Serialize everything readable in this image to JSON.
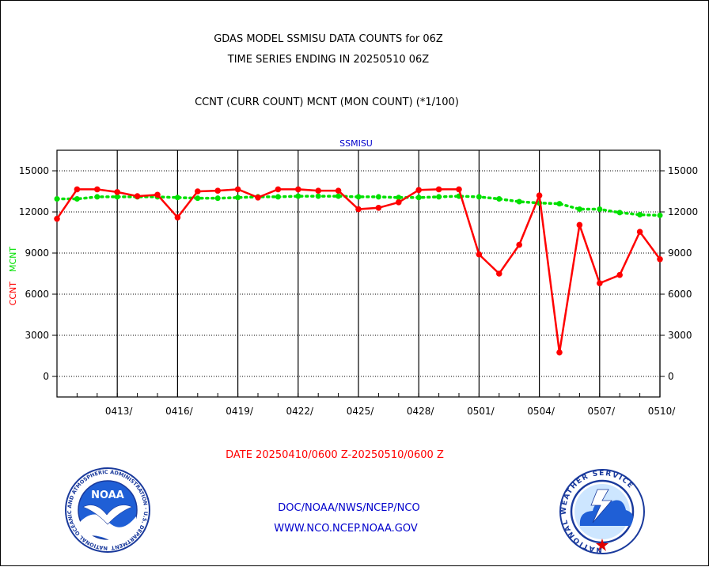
{
  "header": {
    "title_line1": "GDAS MODEL SSMISU DATA COUNTS for 06Z",
    "title_line2": "TIME SERIES ENDING IN 20250510 06Z",
    "subtitle": "CCNT (CURR COUNT) MCNT (MON COUNT) (*1/100)"
  },
  "chart_data": {
    "type": "line",
    "title": "SSMISU",
    "ylabel_ccnt": "CCNT",
    "ylabel_mcnt": "MCNT",
    "xlabel": "DATE 20250410/0600 Z-20250510/0600 Z",
    "ylim": [
      -1500,
      16500
    ],
    "yticks": [
      0,
      3000,
      6000,
      9000,
      12000,
      15000
    ],
    "ytick_labels": [
      "0",
      "3000",
      "6000",
      "9000",
      "12000",
      "15000"
    ],
    "xlim": [
      0,
      30
    ],
    "xtick_major_days": [
      3,
      6,
      9,
      12,
      15,
      18,
      21,
      24,
      27,
      30
    ],
    "xtick_labels": [
      "0413/",
      "0416/",
      "0419/",
      "0422/",
      "0425/",
      "0428/",
      "0501/",
      "0504/",
      "0507/",
      "0510/"
    ],
    "grid": true,
    "series": [
      {
        "name": "CCNT",
        "color": "#ff0000",
        "values": [
          11500,
          13650,
          13650,
          13450,
          13150,
          13250,
          11600,
          13500,
          13550,
          13650,
          13050,
          13650,
          13650,
          13550,
          13550,
          12200,
          12300,
          12700,
          13600,
          13650,
          13650,
          8900,
          7500,
          9600,
          13200,
          1750,
          11050,
          6800,
          7400,
          10550,
          8550
        ]
      },
      {
        "name": "MCNT",
        "color": "#00e000",
        "values": [
          12950,
          12950,
          13100,
          13100,
          13100,
          13100,
          13050,
          13000,
          13000,
          13050,
          13100,
          13100,
          13150,
          13150,
          13150,
          13100,
          13100,
          13050,
          13050,
          13100,
          13150,
          13100,
          12950,
          12750,
          12650,
          12600,
          12200,
          12200,
          11950,
          11800,
          11750
        ]
      }
    ]
  },
  "footer": {
    "line1": "DOC/NOAA/NWS/NCEP/NCO",
    "line2": "WWW.NCO.NCEP.NOAA.GOV"
  },
  "logos": {
    "left": "noaa-logo",
    "right": "national-weather-service-logo",
    "left_brand_text": "NOAA",
    "left_ring_text": "NATIONAL OCEANIC AND ATMOSPHERIC ADMINISTRATION · U.S. DEPARTMENT OF COMMERCE",
    "right_ring_text": "NATIONAL WEATHER SERVICE"
  },
  "colors": {
    "title": "#000000",
    "plot_title": "#0000cc",
    "ccnt": "#ff0000",
    "mcnt": "#00e000",
    "date_label": "#ff0000",
    "footer": "#0000cc"
  }
}
